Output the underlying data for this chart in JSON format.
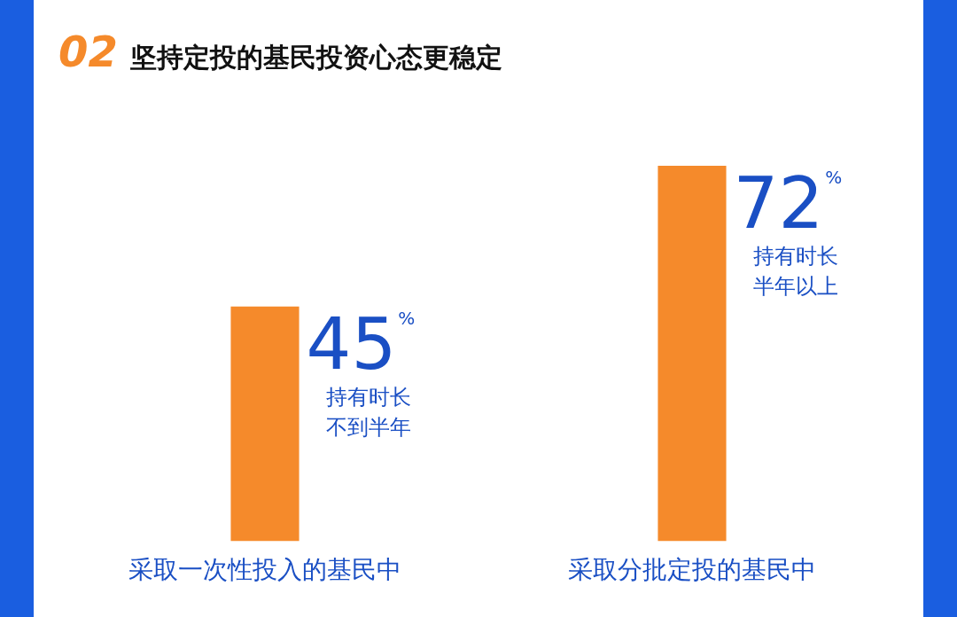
{
  "chart_data": {
    "type": "bar",
    "title": "02 坚持定投的基民投资心态更稳定",
    "categories": [
      "采取一次性投入的基民中",
      "采取分批定投的基民中"
    ],
    "values": [
      45,
      72
    ],
    "color": "#f58a2b",
    "value_labels": [
      "45%",
      "72%"
    ],
    "annotations": [
      "持有时长不到半年",
      "持有时长半年以上"
    ],
    "grid": false,
    "legend": false
  }
}
